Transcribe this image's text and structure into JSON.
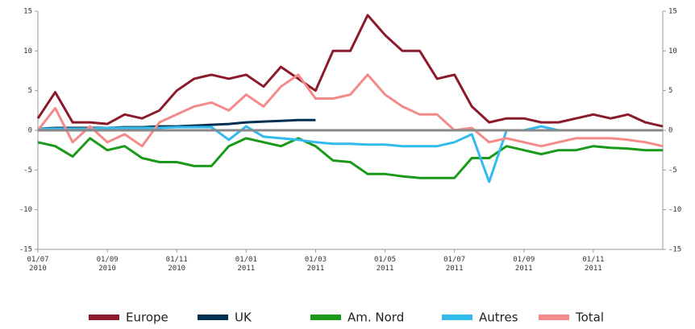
{
  "chart_data": {
    "type": "line",
    "xlim": [
      0,
      18
    ],
    "xticks": [
      {
        "value": 0,
        "label": "01/07 2010"
      },
      {
        "value": 2,
        "label": "01/09 2010"
      },
      {
        "value": 4,
        "label": "01/11 2010"
      },
      {
        "value": 6,
        "label": "01/01 2011"
      },
      {
        "value": 8,
        "label": "01/03 2011"
      },
      {
        "value": 10,
        "label": "01/05 2011"
      },
      {
        "value": 12,
        "label": "01/07 2011"
      },
      {
        "value": 14,
        "label": "01/09 2011"
      },
      {
        "value": 16,
        "label": "01/11 2011"
      }
    ],
    "ylim": [
      -15,
      15
    ],
    "yticks": [
      -15,
      -10,
      -5,
      0,
      5,
      10,
      15
    ],
    "y2lim": [
      -15,
      15
    ],
    "y2ticks": [
      -15,
      -10,
      -5,
      0,
      5,
      10,
      15
    ],
    "x": [
      0,
      0.5,
      1,
      1.5,
      2,
      2.5,
      3,
      3.5,
      4,
      4.5,
      5,
      5.5,
      6,
      6.5,
      7,
      7.5,
      8,
      8.5,
      9,
      9.5,
      10,
      10.5,
      11,
      11.5,
      12,
      12.5,
      13,
      13.5,
      14,
      14.5,
      15,
      15.5,
      16,
      16.5,
      17,
      17.5,
      18
    ],
    "series": [
      {
        "name": "Europe",
        "color": "#8b1a2b",
        "values": [
          1.5,
          4.8,
          1,
          1,
          0.8,
          2,
          1.5,
          2.5,
          5,
          6.5,
          7,
          6.5,
          7,
          5.5,
          8,
          6.5,
          5,
          10,
          10,
          14.5,
          12,
          10,
          10,
          6.5,
          7,
          3,
          1,
          1.5,
          1.5,
          1,
          1,
          1.5,
          2,
          1.5,
          2,
          1,
          0.5
        ]
      },
      {
        "name": "UK",
        "color": "#003050",
        "values": [
          0.2,
          0.3,
          0.3,
          0.3,
          0.3,
          0.4,
          0.4,
          0.5,
          0.5,
          0.6,
          0.7,
          0.8,
          1,
          1.1,
          1.2,
          1.3,
          1.3,
          null,
          null,
          null,
          null,
          null,
          null,
          null,
          null,
          null,
          null,
          null,
          null,
          null,
          null,
          null,
          null,
          null,
          null,
          null,
          null
        ]
      },
      {
        "name": "Am. Nord",
        "color": "#1a9a1a",
        "values": [
          -1.5,
          -2,
          -3.3,
          -1,
          -2.5,
          -2,
          -3.5,
          -4,
          -4,
          -4.5,
          -4.5,
          -2,
          -1,
          -1.5,
          -2,
          -1,
          -2,
          -3.8,
          -4,
          -5.5,
          -5.5,
          -5.8,
          -6,
          -6,
          -6,
          -3.5,
          -3.5,
          -2,
          -2.5,
          -3,
          -2.5,
          -2.5,
          -2,
          -2.2,
          -2.3,
          -2.5,
          -2.5
        ]
      },
      {
        "name": "Autres",
        "color": "#33bbee",
        "values": [
          0.2,
          0.2,
          0.2,
          0.2,
          0.3,
          0.3,
          0.3,
          0.3,
          0.4,
          0.4,
          0.4,
          -1.2,
          0.5,
          -0.8,
          -1,
          -1.2,
          -1.5,
          -1.7,
          -1.7,
          -1.8,
          -1.8,
          -2,
          -2,
          -2,
          -1.5,
          -0.5,
          -6.5,
          0,
          0,
          0.5,
          0,
          0,
          0,
          0,
          0,
          0,
          0
        ]
      },
      {
        "name": "Total",
        "color": "#f48a8a",
        "values": [
          0,
          2.8,
          -1.5,
          0.5,
          -1.5,
          -0.5,
          -2,
          1,
          2,
          3,
          3.5,
          2.5,
          4.5,
          3,
          5.5,
          7,
          4,
          4,
          4.5,
          7,
          4.5,
          3,
          2,
          2,
          0,
          0.3,
          -1.5,
          -1,
          -1.5,
          -2,
          -1.5,
          -1,
          -1,
          -1,
          -1.2,
          -1.5,
          -2
        ]
      }
    ]
  }
}
